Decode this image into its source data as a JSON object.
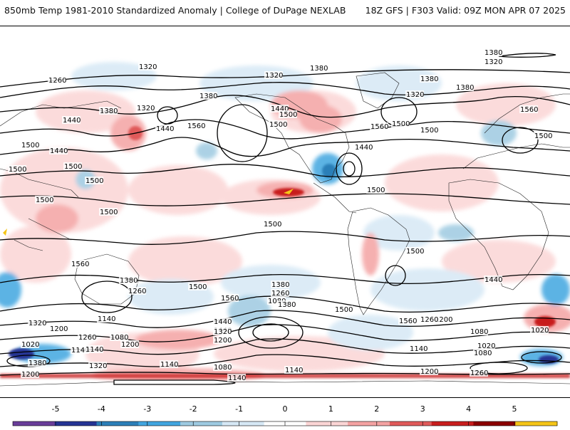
{
  "header": {
    "left": "850mb Temp 1981-2010 Standardized Anomaly | College of DuPage NEXLAB",
    "right": "18Z GFS | F303 Valid: 09Z MON APR 07 2025"
  },
  "colorbar": {
    "ticks": [
      "-5",
      "-4",
      "-3",
      "-2",
      "-1",
      "0",
      "1",
      "2",
      "3",
      "4",
      "5"
    ],
    "colors": [
      "#6a3d9a",
      "#253494",
      "#2c7fb8",
      "#41a6e0",
      "#9ecae1",
      "#d6e8f5",
      "#ffffff",
      "#fbd5d5",
      "#f4a3a3",
      "#e05a5a",
      "#c81e1e",
      "#8b0000",
      "#f5c518"
    ]
  },
  "contour_labels": [
    {
      "text": "1380"
    },
    {
      "text": "1320"
    },
    {
      "text": "1380"
    },
    {
      "text": "1320"
    },
    {
      "text": "1260"
    },
    {
      "text": "1320"
    },
    {
      "text": "1380"
    },
    {
      "text": "1380"
    },
    {
      "text": "1320"
    },
    {
      "text": "1380"
    },
    {
      "text": "1440"
    },
    {
      "text": "1500"
    },
    {
      "text": "1380"
    },
    {
      "text": "1320"
    },
    {
      "text": "1440"
    },
    {
      "text": "1560"
    },
    {
      "text": "1500"
    },
    {
      "text": "1440"
    },
    {
      "text": "1500"
    },
    {
      "text": "1500"
    },
    {
      "text": "1440"
    },
    {
      "text": "1560"
    },
    {
      "text": "1500"
    },
    {
      "text": "1560"
    },
    {
      "text": "1500"
    },
    {
      "text": "1500"
    },
    {
      "text": "1500"
    },
    {
      "text": "1440"
    },
    {
      "text": "1500"
    },
    {
      "text": "1500"
    },
    {
      "text": "1500"
    },
    {
      "text": "1500"
    },
    {
      "text": "1560"
    },
    {
      "text": "1500"
    },
    {
      "text": "1500"
    },
    {
      "text": "1380"
    },
    {
      "text": "1260"
    },
    {
      "text": "1500"
    },
    {
      "text": "1560"
    },
    {
      "text": "1380"
    },
    {
      "text": "1260"
    },
    {
      "text": "1080"
    },
    {
      "text": "1440"
    },
    {
      "text": "1380"
    },
    {
      "text": "1560"
    },
    {
      "text": "1500"
    },
    {
      "text": "1440"
    },
    {
      "text": "1320"
    },
    {
      "text": "1200"
    },
    {
      "text": "1140"
    },
    {
      "text": "1440"
    },
    {
      "text": "1320"
    },
    {
      "text": "1200"
    },
    {
      "text": "1260"
    },
    {
      "text": "1200"
    },
    {
      "text": "1080"
    },
    {
      "text": "1020"
    },
    {
      "text": "1140"
    },
    {
      "text": "1020"
    },
    {
      "text": "1140"
    },
    {
      "text": "1080"
    },
    {
      "text": "1260"
    },
    {
      "text": "1200"
    },
    {
      "text": "1020"
    },
    {
      "text": "1080"
    },
    {
      "text": "1140"
    },
    {
      "text": "1380"
    },
    {
      "text": "1320"
    },
    {
      "text": "1200"
    },
    {
      "text": "1140"
    },
    {
      "text": "1080"
    },
    {
      "text": "1140"
    },
    {
      "text": "1140"
    },
    {
      "text": "1200"
    },
    {
      "text": "1260"
    }
  ]
}
